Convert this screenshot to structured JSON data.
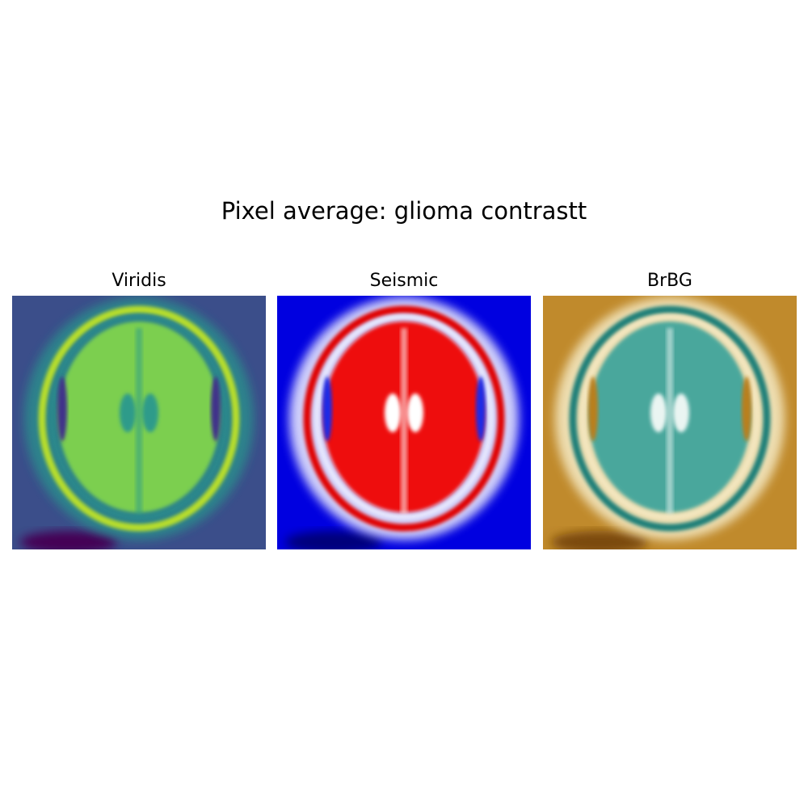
{
  "figure": {
    "title": "Pixel average: glioma contrastt"
  },
  "panels": [
    {
      "id": "viridis",
      "label": "Viridis",
      "colormap": "viridis",
      "colors": {
        "background": "#3b4e8a",
        "ring_outer": "#2a8c8c",
        "ring_bright": "#b8de29",
        "tissue": "#7ccf4f",
        "dark_spot": "#440154",
        "ventricle": "#2f9b8a",
        "shadow": "#40318a"
      }
    },
    {
      "id": "seismic",
      "label": "Seismic",
      "colormap": "seismic",
      "colors": {
        "background": "#0000e0",
        "ring_outer": "#f4f4ff",
        "ring_bright": "#e00000",
        "tissue": "#ee1010",
        "dark_spot": "#00007a",
        "ventricle": "#ffffff",
        "shadow": "#1a2ae6"
      }
    },
    {
      "id": "brbg",
      "label": "BrBG",
      "colormap": "BrBG",
      "colors": {
        "background": "#c08a2c",
        "ring_outer": "#f6ecc8",
        "ring_bright": "#1e7f78",
        "tissue": "#4aa79c",
        "dark_spot": "#7a4a10",
        "ventricle": "#eaf5f2",
        "shadow": "#b97f1f"
      }
    }
  ]
}
